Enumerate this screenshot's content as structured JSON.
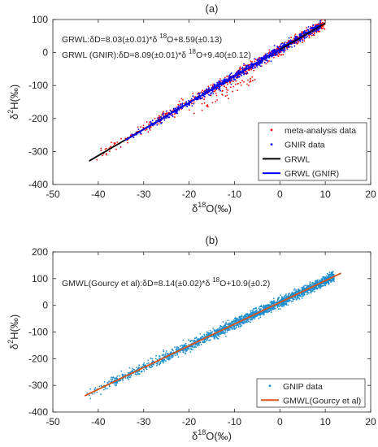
{
  "chart_data": [
    {
      "type": "scatter",
      "title": "(a)",
      "xlabel": "δ18O(‰)",
      "ylabel": "δ2H(‰)",
      "xlim": [
        -50,
        20
      ],
      "ylim": [
        -400,
        100
      ],
      "xticks": [
        "-50",
        "-40",
        "-30",
        "-20",
        "-10",
        "0",
        "10",
        "20"
      ],
      "yticks": [
        "-400",
        "-300",
        "-200",
        "-100",
        "0",
        "100"
      ],
      "grid": false,
      "legend_position": "bottom-right",
      "annotations": [
        "GRWL:δD=8.03(±0.01)*δ 18O+8.59(±0.13)",
        "GRWL (GNIR):δD=8.09(±0.01)*δ 18O+9.40(±0.12)"
      ],
      "series": [
        {
          "name": "meta-analysis data",
          "kind": "scatter",
          "color": "#ff0000",
          "x_range": [
            -42,
            10
          ],
          "slope": 8.03,
          "intercept": 8.59,
          "scatter": 8,
          "count": 700
        },
        {
          "name": "GNIR data",
          "kind": "scatter",
          "color": "#0000ff",
          "x_range": [
            -34,
            9
          ],
          "slope": 8.09,
          "intercept": 9.4,
          "scatter": 6,
          "count": 900
        },
        {
          "name": "GRWL",
          "kind": "line",
          "color": "#000000",
          "x": [
            -42,
            10
          ],
          "y": [
            -328.67,
            88.89
          ]
        },
        {
          "name": "GRWL (GNIR)",
          "kind": "line",
          "color": "#0000ff",
          "x": [
            -34,
            0
          ],
          "y": [
            -265.66,
            9.4
          ]
        }
      ]
    },
    {
      "type": "scatter",
      "title": "(b)",
      "xlabel": "δ18O(‰)",
      "ylabel": "δ2H(‰)",
      "xlim": [
        -50,
        20
      ],
      "ylim": [
        -400,
        200
      ],
      "xticks": [
        "-50",
        "-40",
        "-30",
        "-20",
        "-10",
        "0",
        "10",
        "20"
      ],
      "yticks": [
        "-400",
        "-300",
        "-200",
        "-100",
        "0",
        "100",
        "200"
      ],
      "grid": false,
      "legend_position": "bottom-right",
      "annotations": [
        "GMWL(Gourcy et al):δD=8.14(±0.02)*δ 18O+10.9(±0.2)"
      ],
      "series": [
        {
          "name": "GNIP data",
          "kind": "scatter",
          "color": "#1f8fcf",
          "x_range": [
            -43,
            12
          ],
          "slope": 8.14,
          "intercept": 10.9,
          "scatter": 9,
          "count": 2200
        },
        {
          "name": "GMWL(Gourcy et al)",
          "kind": "line",
          "color": "#d95319",
          "x": [
            -43,
            13.5
          ],
          "y": [
            -339.12,
            120.79
          ]
        }
      ]
    }
  ]
}
